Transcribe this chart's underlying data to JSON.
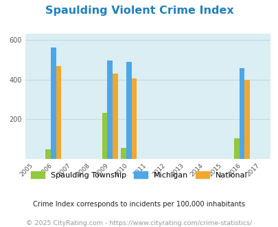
{
  "title": "Spaulding Violent Crime Index",
  "title_color": "#2080c0",
  "title_fontsize": 11.5,
  "bg_color": "#daeef3",
  "years": [
    2005,
    2006,
    2007,
    2008,
    2009,
    2010,
    2011,
    2012,
    2013,
    2014,
    2015,
    2016,
    2017
  ],
  "data_years": [
    2006,
    2009,
    2010,
    2016
  ],
  "spaulding": {
    "2006": 47,
    "2009": 233,
    "2010": 55,
    "2016": 105
  },
  "michigan": {
    "2006": 563,
    "2009": 498,
    "2010": 490,
    "2016": 458
  },
  "national": {
    "2006": 470,
    "2009": 430,
    "2010": 405,
    "2016": 398
  },
  "spaulding_color": "#92c83e",
  "michigan_color": "#4da6e8",
  "national_color": "#f0a830",
  "ylim": [
    0,
    630
  ],
  "yticks": [
    0,
    200,
    400,
    600
  ],
  "bar_width": 0.28,
  "legend_labels": [
    "Spaulding Township",
    "Michigan",
    "National"
  ],
  "footnote1": "Crime Index corresponds to incidents per 100,000 inhabitants",
  "footnote2": "© 2025 CityRating.com - https://www.cityrating.com/crime-statistics/",
  "footnote1_color": "#222222",
  "footnote2_color": "#999999",
  "footnote1_fontsize": 7.2,
  "footnote2_fontsize": 6.8,
  "legend_fontsize": 8
}
